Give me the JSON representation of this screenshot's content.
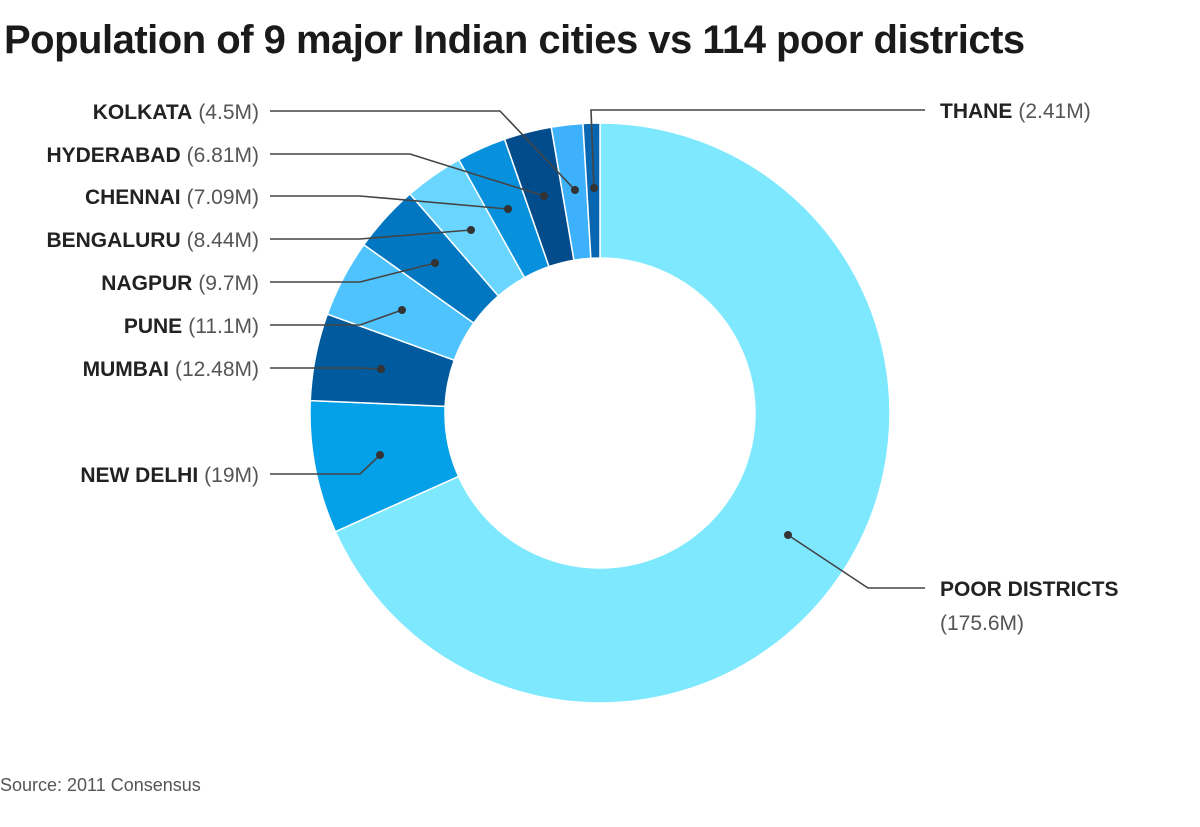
{
  "chart_data": {
    "type": "pie",
    "subtype": "donut",
    "title": "Population of 9 major Indian cities vs 114 poor districts",
    "unit": "M",
    "slices": [
      {
        "name": "POOR DISTRICTS",
        "value": 175.6,
        "value_label": "(175.6M)",
        "color": "#7ee8ff"
      },
      {
        "name": "NEW DELHI",
        "value": 19,
        "value_label": "(19M)",
        "color": "#04a0e8"
      },
      {
        "name": "MUMBAI",
        "value": 12.48,
        "value_label": "(12.48M)",
        "color": "#005a9e"
      },
      {
        "name": "PUNE",
        "value": 11.1,
        "value_label": "(11.1M)",
        "color": "#4fc3fd"
      },
      {
        "name": "NAGPUR",
        "value": 9.7,
        "value_label": "(9.7M)",
        "color": "#0077c0"
      },
      {
        "name": "BENGALURU",
        "value": 8.44,
        "value_label": "(8.44M)",
        "color": "#6ad6ff"
      },
      {
        "name": "CHENNAI",
        "value": 7.09,
        "value_label": "(7.09M)",
        "color": "#0790db"
      },
      {
        "name": "HYDERABAD",
        "value": 6.81,
        "value_label": "(6.81M)",
        "color": "#024c8c"
      },
      {
        "name": "KOLKATA",
        "value": 4.5,
        "value_label": "(4.5M)",
        "color": "#3db1fb"
      },
      {
        "name": "THANE",
        "value": 2.41,
        "value_label": "(2.41M)",
        "color": "#0866b0"
      }
    ],
    "start_angle": "top",
    "direction": "clockwise",
    "legend": "none"
  },
  "footer": {
    "source": "Source: 2011 Consensus"
  }
}
